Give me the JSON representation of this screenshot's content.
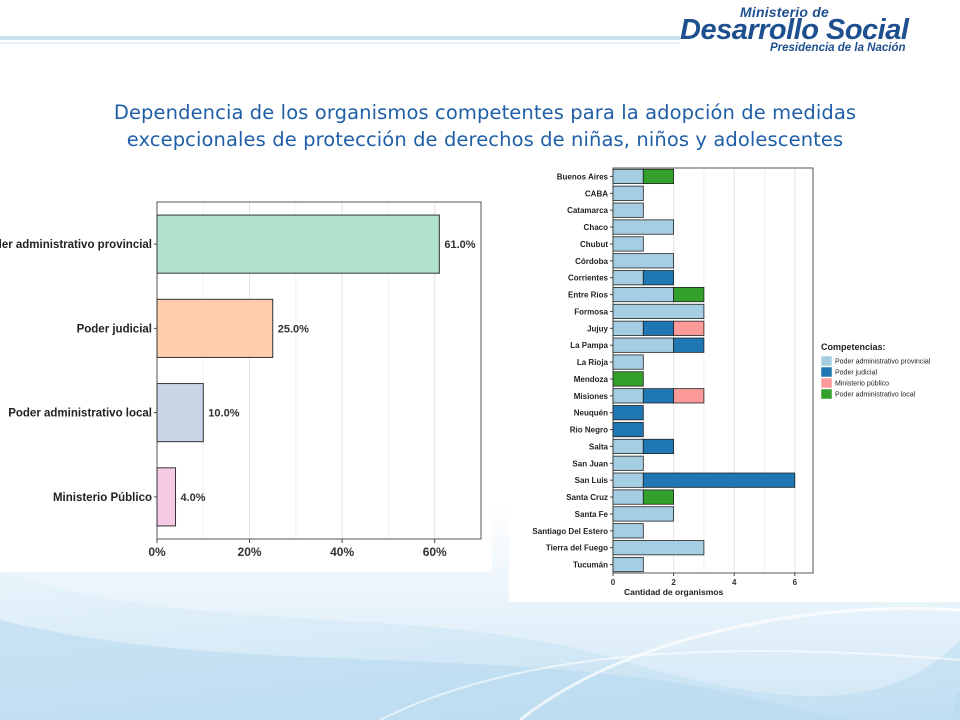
{
  "header": {
    "logo_line1": "Ministerio de",
    "logo_line2": "Desarrollo Social",
    "logo_line3": "Presidencia de la Nación"
  },
  "slide": {
    "title_line1": "Dependencia de los organismos competentes para la adopción de medidas",
    "title_line2": "excepcionales de protección de derechos de niñas, niños y adolescentes"
  },
  "colors": {
    "title": "#1f5fa8",
    "logo": "#1e4f8f",
    "provincial_pastel": "#b2e2cd",
    "judicial_pastel": "#fdcdac",
    "local_pastel": "#cbd5e8",
    "ministerio_pastel": "#f4cae4",
    "provincial": "#a6cee3",
    "judicial": "#1f78b4",
    "ministerio": "#fb9a99",
    "local": "#33a02c"
  },
  "chart_data": [
    {
      "type": "bar",
      "orientation": "horizontal",
      "categories": [
        "Poder administrativo provincial",
        "Poder judicial",
        "Poder administrativo local",
        "Ministerio Público"
      ],
      "values": [
        61.0,
        25.0,
        10.0,
        4.0
      ],
      "value_labels": [
        "61.0%",
        "25.0%",
        "10.0%",
        "4.0%"
      ],
      "colors": [
        "#b2e2cd",
        "#fdcdac",
        "#cbd5e8",
        "#f4cae4"
      ],
      "xlim": [
        0,
        70
      ],
      "x_ticks": [
        0,
        20,
        40,
        60
      ],
      "x_tick_labels": [
        "0%",
        "20%",
        "40%",
        "60%"
      ],
      "grid": true
    },
    {
      "type": "bar",
      "orientation": "horizontal",
      "stacked": true,
      "xlabel": "Cantidad de organismos",
      "x_ticks": [
        0,
        2,
        4,
        6
      ],
      "xlim": [
        0,
        6.6
      ],
      "legend_title": "Competencias:",
      "legend_position": "right",
      "grid": true,
      "categories": [
        "Buenos Aires",
        "CABA",
        "Catamarca",
        "Chaco",
        "Chubut",
        "Córdoba",
        "Corrientes",
        "Entre Rios",
        "Formosa",
        "Jujuy",
        "La Pampa",
        "La Rioja",
        "Mendoza",
        "Misiones",
        "Neuquén",
        "Rio Negro",
        "Salta",
        "San Juan",
        "San Luis",
        "Santa Cruz",
        "Santa Fe",
        "Santiago Del Estero",
        "Tierra del Fuego",
        "Tucumán"
      ],
      "series": [
        {
          "name": "Poder administrativo provincial",
          "color": "#a6cee3",
          "values": [
            1,
            1,
            1,
            2,
            1,
            2,
            1,
            2,
            3,
            1,
            2,
            1,
            0,
            1,
            0,
            0,
            1,
            1,
            1,
            1,
            2,
            1,
            3,
            1
          ]
        },
        {
          "name": "Poder judicial",
          "color": "#1f78b4",
          "values": [
            0,
            0,
            0,
            0,
            0,
            0,
            1,
            0,
            0,
            1,
            1,
            0,
            0,
            1,
            1,
            1,
            1,
            0,
            5,
            0,
            0,
            0,
            0,
            0
          ]
        },
        {
          "name": "Ministerio público",
          "color": "#fb9a99",
          "values": [
            0,
            0,
            0,
            0,
            0,
            0,
            0,
            0,
            0,
            1,
            0,
            0,
            0,
            1,
            0,
            0,
            0,
            0,
            0,
            0,
            0,
            0,
            0,
            0
          ]
        },
        {
          "name": "Poder administrativo local",
          "color": "#33a02c",
          "values": [
            1,
            0,
            0,
            0,
            0,
            0,
            0,
            1,
            0,
            0,
            0,
            0,
            1,
            0,
            0,
            0,
            0,
            0,
            0,
            1,
            0,
            0,
            0,
            0
          ]
        }
      ]
    }
  ]
}
